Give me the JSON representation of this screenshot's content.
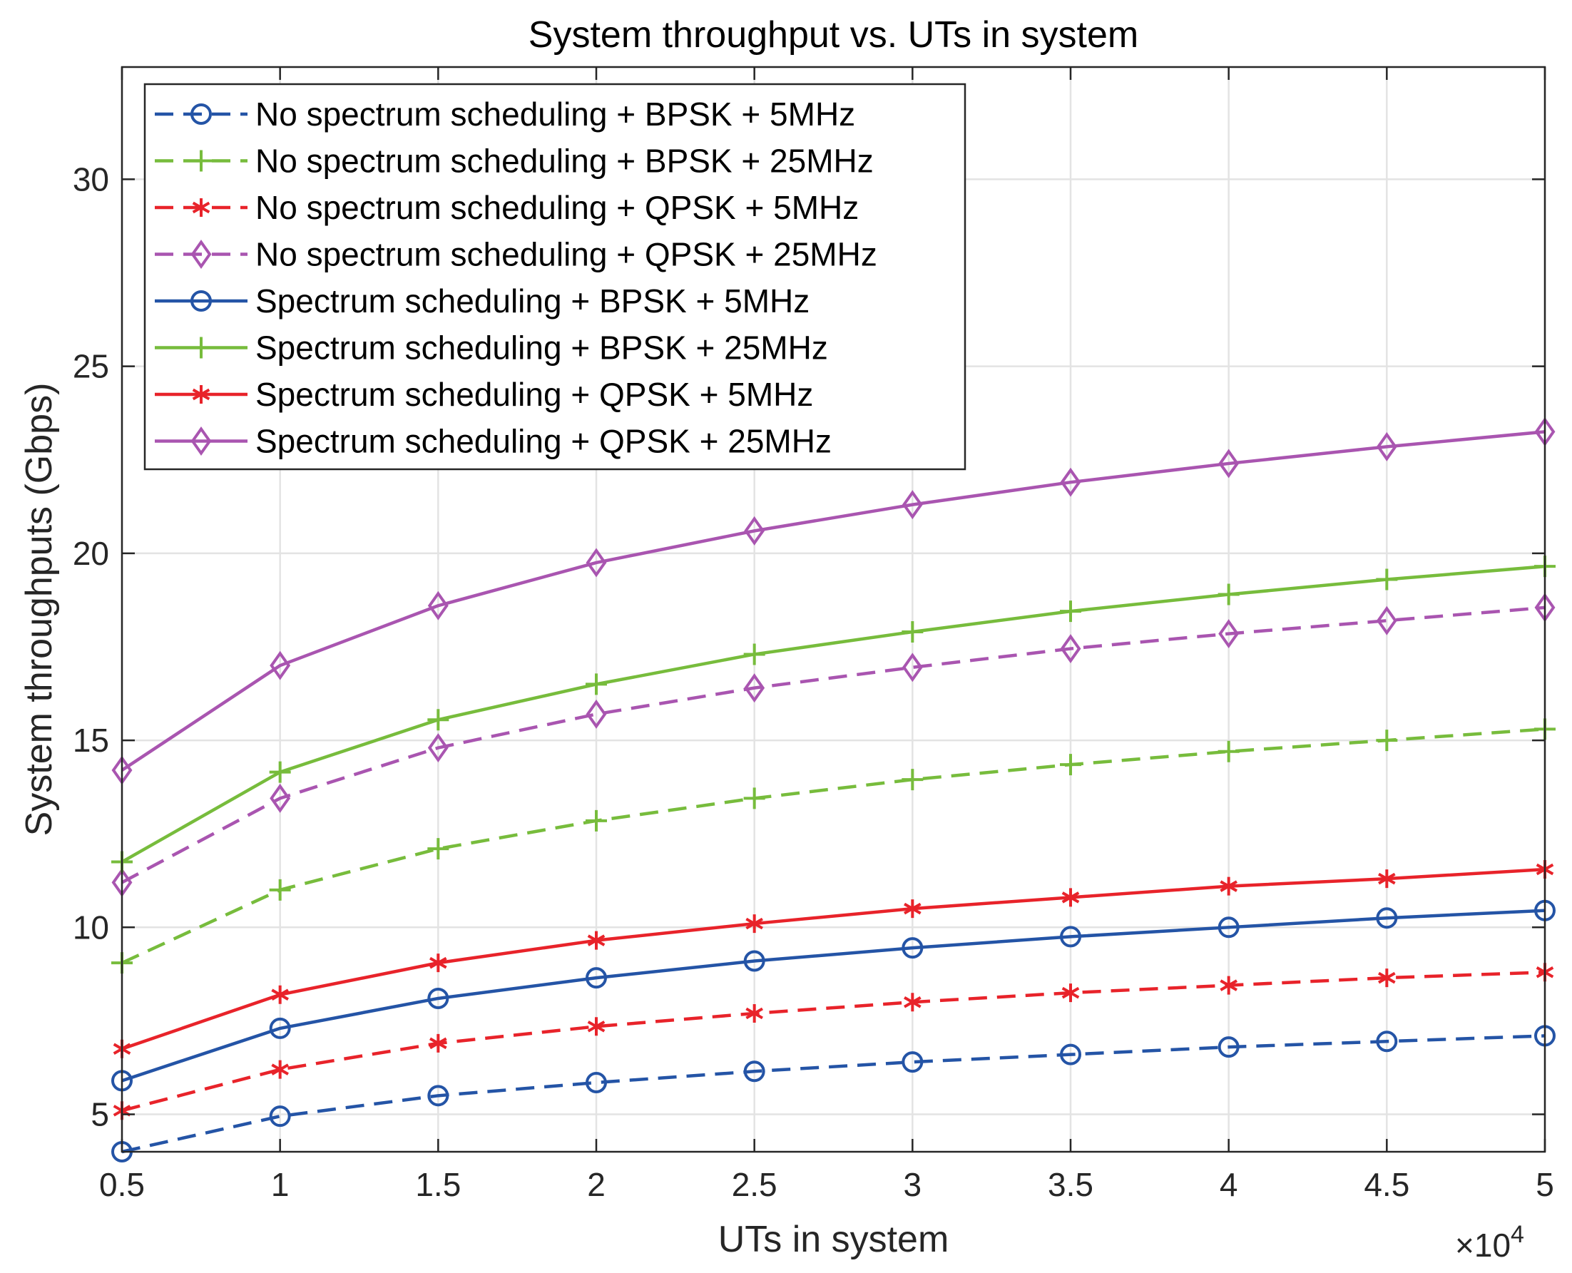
{
  "chart_data": {
    "type": "line",
    "title": "System throughput vs. UTs in system",
    "xlabel": "UTs in system",
    "ylabel": "System throughputs (Gbps)",
    "x_exponent_label": {
      "base": "×10",
      "exp": "4"
    },
    "xlim": [
      0.5,
      5
    ],
    "ylim": [
      4,
      33
    ],
    "x": [
      0.5,
      1,
      1.5,
      2,
      2.5,
      3,
      3.5,
      4,
      4.5,
      5
    ],
    "xticks": [
      {
        "value": 0.5,
        "label": "0.5"
      },
      {
        "value": 1,
        "label": "1"
      },
      {
        "value": 1.5,
        "label": "1.5"
      },
      {
        "value": 2,
        "label": "2"
      },
      {
        "value": 2.5,
        "label": "2.5"
      },
      {
        "value": 3,
        "label": "3"
      },
      {
        "value": 3.5,
        "label": "3.5"
      },
      {
        "value": 4,
        "label": "4"
      },
      {
        "value": 4.5,
        "label": "4.5"
      },
      {
        "value": 5,
        "label": "5"
      }
    ],
    "yticks": [
      {
        "value": 5,
        "label": "5"
      },
      {
        "value": 10,
        "label": "10"
      },
      {
        "value": 15,
        "label": "15"
      },
      {
        "value": 20,
        "label": "20"
      },
      {
        "value": 25,
        "label": "25"
      },
      {
        "value": 30,
        "label": "30"
      }
    ],
    "grid": true,
    "legend_position": "top-left",
    "series": [
      {
        "name": "No spectrum scheduling + BPSK + 5MHz",
        "color": "#2454a6",
        "dash": "dashed",
        "marker": "circle",
        "values": [
          4.0,
          4.95,
          5.5,
          5.85,
          6.15,
          6.4,
          6.6,
          6.8,
          6.95,
          7.1
        ]
      },
      {
        "name": "No spectrum scheduling + BPSK + 25MHz",
        "color": "#77bc3c",
        "dash": "dashed",
        "marker": "plus",
        "values": [
          9.05,
          11.0,
          12.1,
          12.85,
          13.45,
          13.95,
          14.35,
          14.7,
          15.0,
          15.3
        ]
      },
      {
        "name": "No spectrum scheduling + QPSK + 5MHz",
        "color": "#e8232a",
        "dash": "dashed",
        "marker": "star",
        "values": [
          5.1,
          6.2,
          6.9,
          7.35,
          7.7,
          8.0,
          8.25,
          8.45,
          8.65,
          8.8
        ]
      },
      {
        "name": "No spectrum scheduling + QPSK + 25MHz",
        "color": "#a955b0",
        "dash": "dashed",
        "marker": "diamond",
        "values": [
          11.2,
          13.45,
          14.8,
          15.7,
          16.4,
          16.95,
          17.45,
          17.85,
          18.2,
          18.55
        ]
      },
      {
        "name": "Spectrum scheduling + BPSK + 5MHz",
        "color": "#2454a6",
        "dash": "solid",
        "marker": "circle",
        "values": [
          5.9,
          7.3,
          8.1,
          8.65,
          9.1,
          9.45,
          9.75,
          10.0,
          10.25,
          10.45
        ]
      },
      {
        "name": "Spectrum scheduling + BPSK + 25MHz",
        "color": "#77bc3c",
        "dash": "solid",
        "marker": "plus",
        "values": [
          11.75,
          14.15,
          15.55,
          16.5,
          17.3,
          17.9,
          18.45,
          18.9,
          19.3,
          19.65
        ]
      },
      {
        "name": "Spectrum scheduling + QPSK + 5MHz",
        "color": "#e8232a",
        "dash": "solid",
        "marker": "star",
        "values": [
          6.75,
          8.2,
          9.05,
          9.65,
          10.1,
          10.5,
          10.8,
          11.1,
          11.3,
          11.55
        ]
      },
      {
        "name": "Spectrum scheduling + QPSK + 25MHz",
        "color": "#a955b0",
        "dash": "solid",
        "marker": "diamond",
        "values": [
          14.2,
          17.0,
          18.6,
          19.75,
          20.6,
          21.3,
          21.9,
          22.4,
          22.85,
          23.25
        ]
      }
    ]
  }
}
